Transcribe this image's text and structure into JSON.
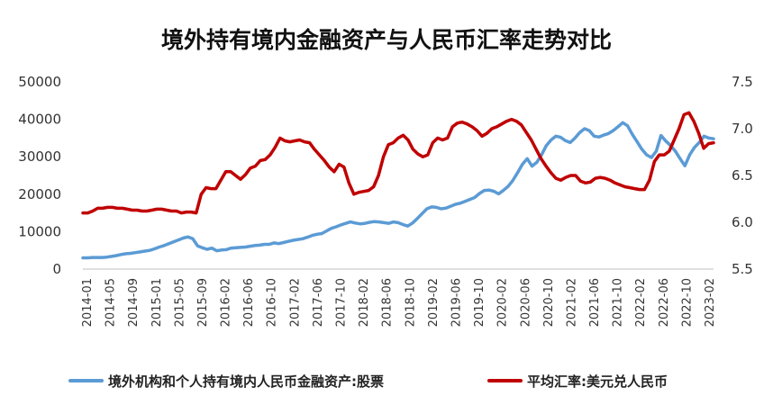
{
  "chart_data": {
    "type": "line",
    "title": "境外持有境内金融资产与人民币汇率走势对比",
    "legend_position": "bottom",
    "grid": false,
    "left_axis": {
      "min": 0,
      "max": 50000,
      "ticks": [
        "0",
        "10000",
        "20000",
        "30000",
        "40000",
        "50000"
      ]
    },
    "right_axis": {
      "min": 5.5,
      "max": 7.5,
      "ticks": [
        "5.5",
        "6.0",
        "6.5",
        "7.0",
        "7.5"
      ]
    },
    "x_labels": [
      "2014-01",
      "2014-05",
      "2014-09",
      "2015-01",
      "2015-05",
      "2015-09",
      "2016-02",
      "2016-06",
      "2016-10",
      "2017-02",
      "2017-06",
      "2017-10",
      "2018-02",
      "2018-06",
      "2018-10",
      "2019-02",
      "2019-06",
      "2019-10",
      "2020-02",
      "2020-06",
      "2020-10",
      "2021-02",
      "2021-06",
      "2021-10",
      "2022-02",
      "2022-06",
      "2022-10",
      "2023-02"
    ],
    "series": [
      {
        "name": "境外机构和个人持有境内人民币金融资产:股票",
        "axis": "left",
        "color": "#5b9bd5",
        "values": [
          3000,
          3000,
          3100,
          3100,
          3100,
          3200,
          3400,
          3600,
          3900,
          4100,
          4200,
          4400,
          4600,
          4800,
          5000,
          5400,
          5900,
          6300,
          6800,
          7300,
          7800,
          8300,
          8600,
          8100,
          6200,
          5700,
          5300,
          5600,
          4900,
          5100,
          5200,
          5600,
          5700,
          5800,
          5900,
          6100,
          6300,
          6400,
          6600,
          6600,
          7000,
          6800,
          7100,
          7400,
          7700,
          7900,
          8100,
          8500,
          9000,
          9300,
          9500,
          10200,
          10900,
          11300,
          11800,
          12200,
          12600,
          12300,
          12100,
          12200,
          12500,
          12700,
          12600,
          12400,
          12200,
          12600,
          12400,
          11900,
          11500,
          12300,
          13500,
          14800,
          16100,
          16600,
          16500,
          16100,
          16300,
          16800,
          17300,
          17600,
          18100,
          18600,
          19100,
          20200,
          21000,
          21100,
          20800,
          20100,
          21000,
          22100,
          23700,
          25800,
          28000,
          29500,
          27500,
          28500,
          30500,
          33000,
          34500,
          35500,
          35200,
          34300,
          33800,
          35000,
          36500,
          37500,
          37000,
          35500,
          35300,
          35800,
          36200,
          37000,
          38000,
          39100,
          38300,
          36000,
          34000,
          32000,
          30500,
          29800,
          31500,
          35700,
          34200,
          33000,
          31500,
          29500,
          27600,
          30500,
          32500,
          33800,
          35500,
          35000,
          34800
        ]
      },
      {
        "name": "平均汇率:美元兑人民币",
        "axis": "right",
        "color": "#c00000",
        "values": [
          6.1,
          6.1,
          6.12,
          6.15,
          6.15,
          6.16,
          6.16,
          6.15,
          6.15,
          6.14,
          6.13,
          6.13,
          6.12,
          6.12,
          6.13,
          6.14,
          6.14,
          6.13,
          6.12,
          6.12,
          6.1,
          6.11,
          6.11,
          6.1,
          6.3,
          6.37,
          6.36,
          6.36,
          6.45,
          6.54,
          6.54,
          6.5,
          6.46,
          6.51,
          6.58,
          6.6,
          6.66,
          6.67,
          6.72,
          6.8,
          6.9,
          6.87,
          6.86,
          6.87,
          6.88,
          6.86,
          6.85,
          6.78,
          6.72,
          6.66,
          6.59,
          6.54,
          6.62,
          6.59,
          6.42,
          6.3,
          6.32,
          6.33,
          6.34,
          6.38,
          6.5,
          6.7,
          6.83,
          6.85,
          6.9,
          6.93,
          6.88,
          6.78,
          6.73,
          6.7,
          6.72,
          6.85,
          6.9,
          6.88,
          6.9,
          7.02,
          7.06,
          7.07,
          7.05,
          7.02,
          6.98,
          6.92,
          6.95,
          7.0,
          7.02,
          7.05,
          7.08,
          7.1,
          7.08,
          7.04,
          6.96,
          6.88,
          6.78,
          6.68,
          6.6,
          6.53,
          6.47,
          6.45,
          6.48,
          6.5,
          6.5,
          6.44,
          6.42,
          6.43,
          6.47,
          6.48,
          6.47,
          6.45,
          6.42,
          6.4,
          6.38,
          6.37,
          6.36,
          6.35,
          6.35,
          6.45,
          6.65,
          6.72,
          6.72,
          6.76,
          6.88,
          7.0,
          7.15,
          7.17,
          7.08,
          6.95,
          6.79,
          6.84,
          6.85
        ]
      }
    ]
  }
}
